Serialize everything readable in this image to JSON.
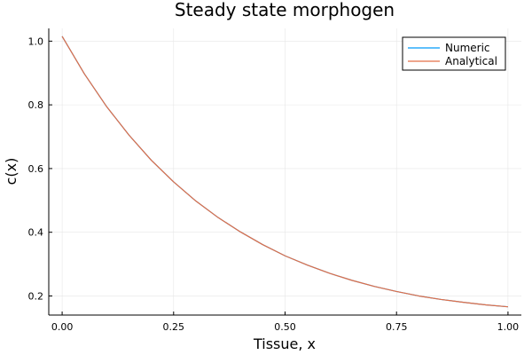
{
  "chart_data": {
    "type": "line",
    "title": "Steady state morphogen",
    "xlabel": "Tissue, x",
    "ylabel": "c(x)",
    "xlim": [
      -0.03,
      1.03
    ],
    "ylim": [
      0.14,
      1.04
    ],
    "xticks": [
      0.0,
      0.25,
      0.5,
      0.75,
      1.0
    ],
    "xtick_labels": [
      "0.00",
      "0.25",
      "0.50",
      "0.75",
      "1.00"
    ],
    "yticks": [
      0.2,
      0.4,
      0.6,
      0.8,
      1.0
    ],
    "ytick_labels": [
      "0.2",
      "0.4",
      "0.6",
      "0.8",
      "1.0"
    ],
    "grid": true,
    "legend_position": "top-right",
    "x": [
      0.0,
      0.05,
      0.1,
      0.15,
      0.2,
      0.25,
      0.3,
      0.35,
      0.4,
      0.45,
      0.5,
      0.55,
      0.6,
      0.65,
      0.7,
      0.75,
      0.8,
      0.85,
      0.9,
      0.95,
      1.0
    ],
    "series": [
      {
        "name": "Numeric",
        "color": "#009AFA",
        "values": [
          1.015,
          0.897,
          0.794,
          0.705,
          0.626,
          0.558,
          0.498,
          0.446,
          0.401,
          0.361,
          0.326,
          0.297,
          0.271,
          0.249,
          0.23,
          0.214,
          0.2,
          0.189,
          0.18,
          0.172,
          0.166
        ]
      },
      {
        "name": "Analytical",
        "color": "#E36F47",
        "values": [
          1.015,
          0.897,
          0.794,
          0.705,
          0.626,
          0.558,
          0.498,
          0.446,
          0.401,
          0.361,
          0.326,
          0.297,
          0.271,
          0.249,
          0.23,
          0.214,
          0.2,
          0.189,
          0.18,
          0.172,
          0.166
        ]
      }
    ]
  }
}
